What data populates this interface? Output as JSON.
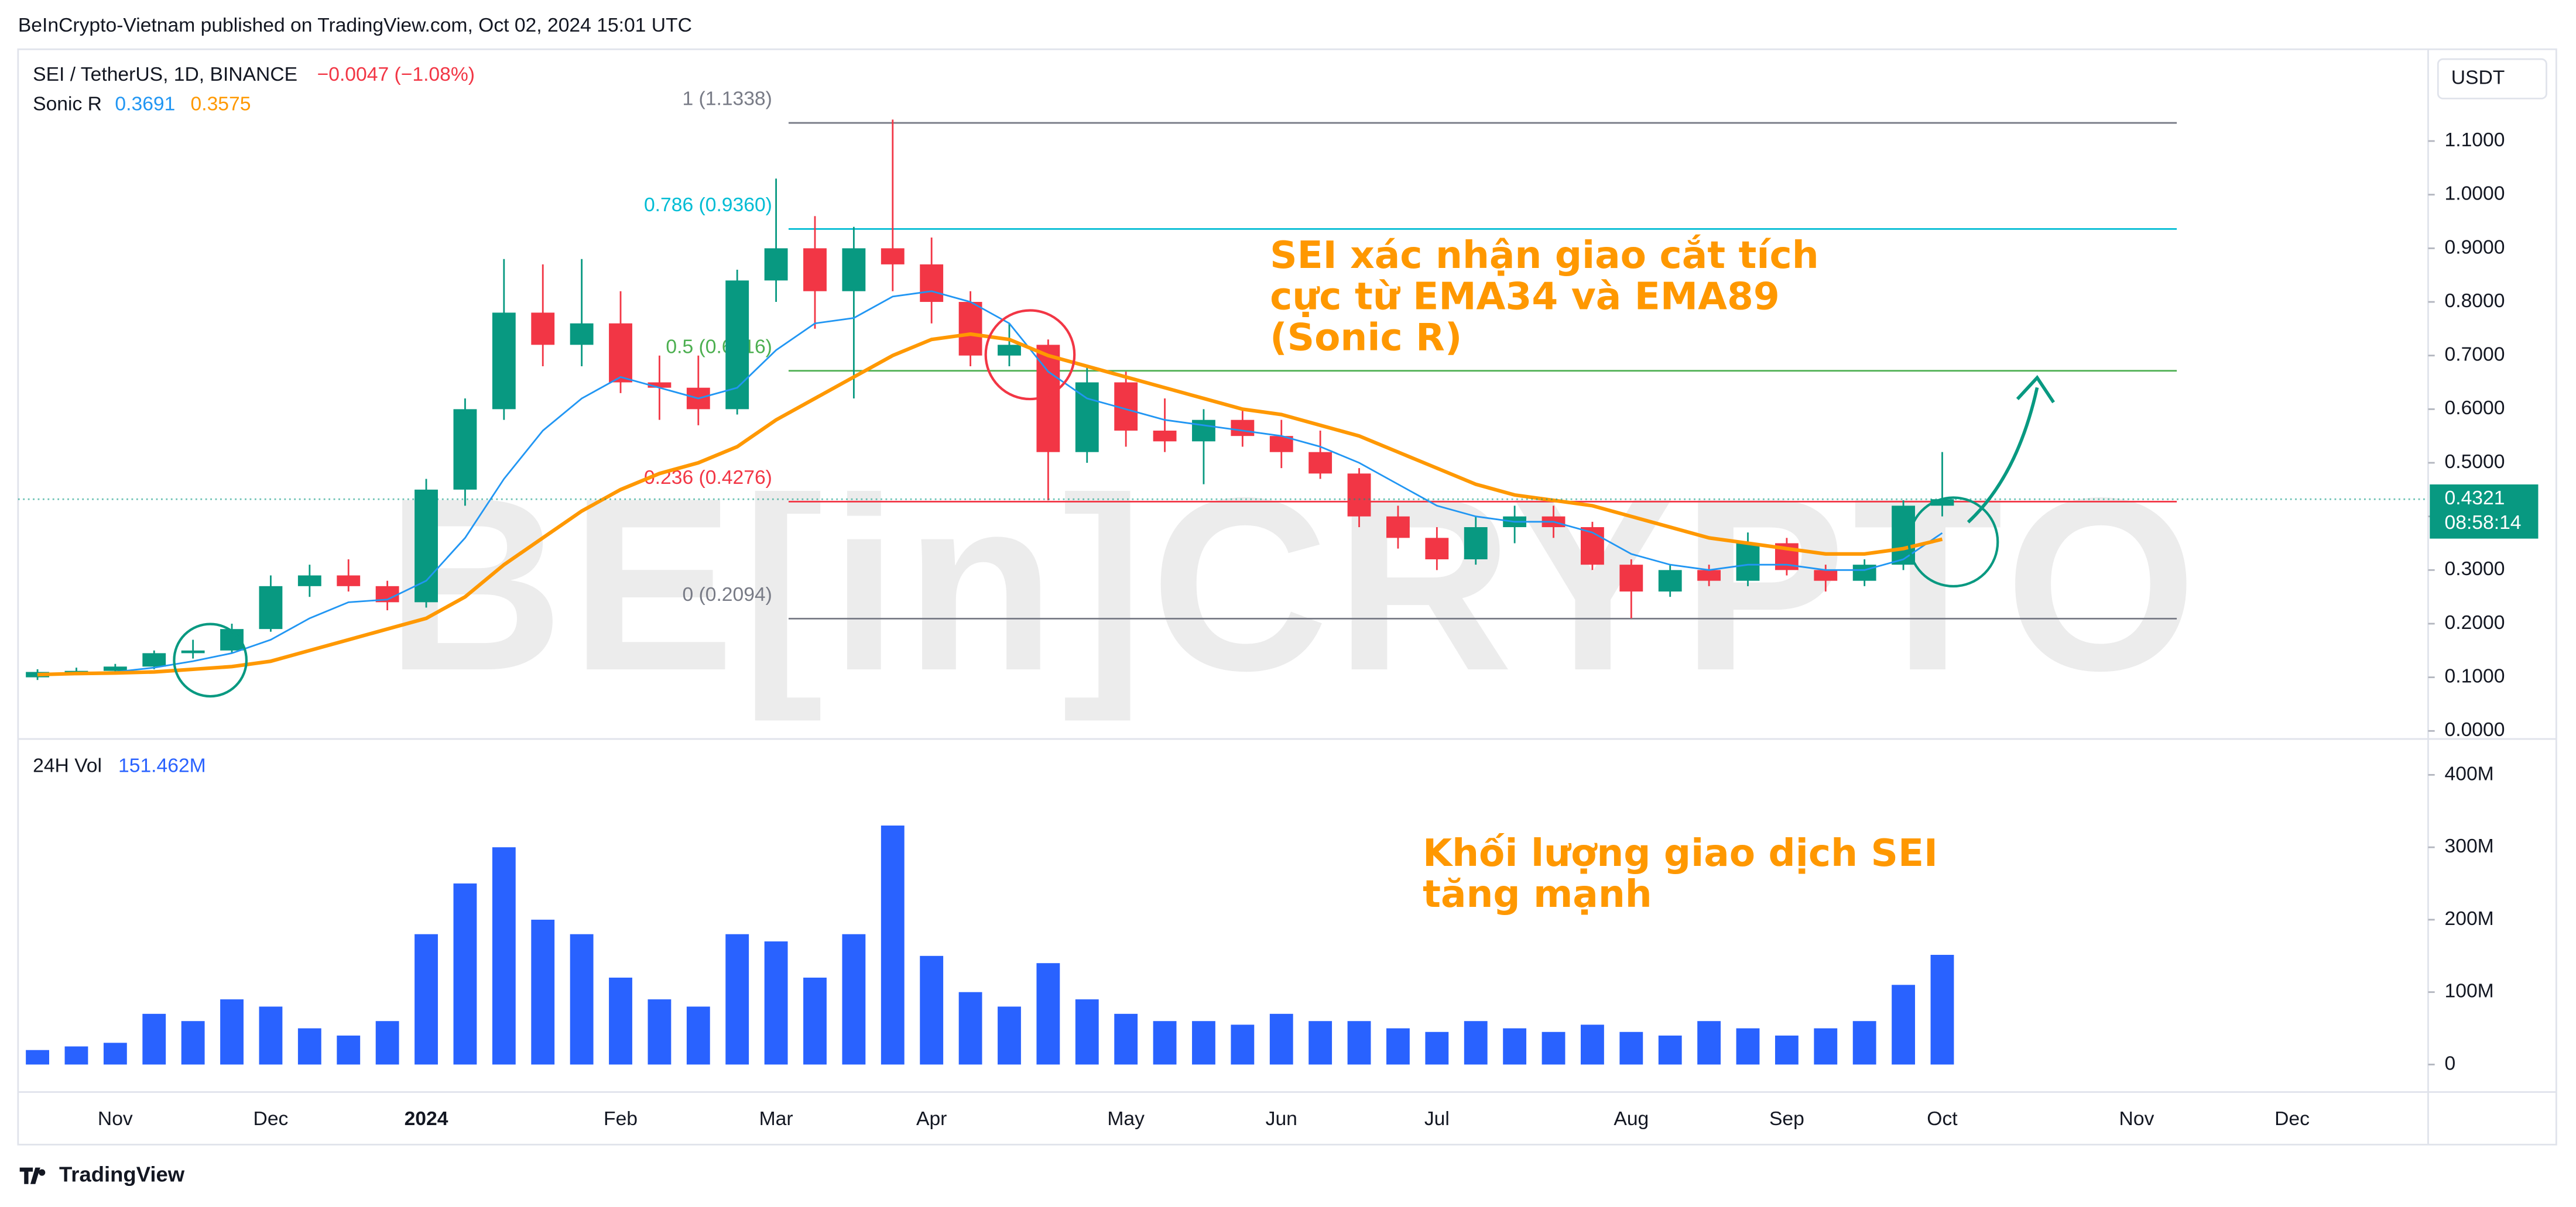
{
  "header": {
    "published": "BeInCrypto-Vietnam published on TradingView.com, Oct 02, 2024 15:01 UTC",
    "symbol": "SEI / TetherUS, 1D, BINANCE",
    "change": "−0.0047 (−1.08%)",
    "indicator": "Sonic R",
    "volume_title": "24H Vol",
    "currency": "USDT",
    "countdown": "08:58:14",
    "footer": "TradingView"
  },
  "watermark": "BE[in]CRYPTO",
  "annotations": [
    {
      "lines": [
        "SEI xác nhận giao cắt tích",
        "cực từ EMA34 và EMA89",
        "(Sonic R)"
      ],
      "color": "#ff9800"
    },
    {
      "lines": [
        "Khối lượng giao dịch SEI",
        "tăng mạnh"
      ],
      "color": "#ff9800"
    }
  ],
  "fib_levels": [
    {
      "label": "1 (1.1338)",
      "price": 1.1338,
      "color": "#787b86"
    },
    {
      "label": "0.786 (0.9360)",
      "price": 0.936,
      "color": "#00bcd4"
    },
    {
      "label": "0.5 (0.6716)",
      "price": 0.6716,
      "color": "#4caf50"
    },
    {
      "label": "0.236 (0.4276)",
      "price": 0.4276,
      "color": "#f23645"
    },
    {
      "label": "0 (0.2094)",
      "price": 0.2094,
      "color": "#787b86"
    }
  ],
  "chart_data": [
    {
      "type": "candlestick",
      "categories": [
        null,
        null,
        "Nov",
        null,
        null,
        null,
        "Dec",
        null,
        null,
        null,
        "2024",
        null,
        null,
        null,
        null,
        "Feb",
        null,
        null,
        null,
        "Mar",
        null,
        null,
        null,
        "Apr",
        null,
        null,
        null,
        null,
        "May",
        null,
        null,
        null,
        "Jun",
        null,
        null,
        null,
        "Jul",
        null,
        null,
        null,
        null,
        "Aug",
        null,
        null,
        null,
        "Sep",
        null,
        null,
        null,
        "Oct",
        null,
        null,
        null,
        null,
        "Nov",
        null,
        null,
        null,
        "Dec",
        null,
        null,
        null
      ],
      "open": [
        0.1,
        0.11,
        0.112,
        0.12,
        0.145,
        0.15,
        0.19,
        0.27,
        0.29,
        0.27,
        0.24,
        0.45,
        0.6,
        0.78,
        0.72,
        0.76,
        0.65,
        0.64,
        0.6,
        0.84,
        0.9,
        0.82,
        0.9,
        0.87,
        0.8,
        0.7,
        0.72,
        0.52,
        0.65,
        0.56,
        0.54,
        0.58,
        0.55,
        0.52,
        0.48,
        0.4,
        0.36,
        0.32,
        0.38,
        0.4,
        0.38,
        0.31,
        0.26,
        0.3,
        0.28,
        0.35,
        0.3,
        0.28,
        0.31,
        0.42,
        null,
        null,
        null,
        null,
        null,
        null,
        null,
        null,
        null,
        null,
        null,
        null
      ],
      "high": [
        0.115,
        0.118,
        0.125,
        0.15,
        0.17,
        0.2,
        0.29,
        0.31,
        0.32,
        0.28,
        0.47,
        0.62,
        0.88,
        0.87,
        0.88,
        0.82,
        0.7,
        0.7,
        0.86,
        1.03,
        0.96,
        0.94,
        1.14,
        0.92,
        0.82,
        0.76,
        0.73,
        0.68,
        0.67,
        0.62,
        0.6,
        0.6,
        0.58,
        0.56,
        0.49,
        0.42,
        0.38,
        0.4,
        0.42,
        0.42,
        0.39,
        0.32,
        0.31,
        0.31,
        0.37,
        0.36,
        0.31,
        0.32,
        0.43,
        0.52,
        null,
        null,
        null,
        null,
        null,
        null,
        null,
        null,
        null,
        null,
        null,
        null
      ],
      "low": [
        0.095,
        0.105,
        0.108,
        0.115,
        0.135,
        0.145,
        0.185,
        0.25,
        0.26,
        0.225,
        0.23,
        0.42,
        0.58,
        0.68,
        0.68,
        0.63,
        0.58,
        0.57,
        0.59,
        0.8,
        0.75,
        0.62,
        0.82,
        0.76,
        0.68,
        0.68,
        0.43,
        0.5,
        0.53,
        0.52,
        0.46,
        0.53,
        0.49,
        0.47,
        0.38,
        0.34,
        0.3,
        0.31,
        0.35,
        0.36,
        0.3,
        0.21,
        0.25,
        0.27,
        0.27,
        0.29,
        0.26,
        0.27,
        0.3,
        0.4,
        null,
        null,
        null,
        null,
        null,
        null,
        null,
        null,
        null,
        null,
        null,
        null
      ],
      "close": [
        0.11,
        0.112,
        0.12,
        0.145,
        0.15,
        0.19,
        0.27,
        0.29,
        0.27,
        0.24,
        0.45,
        0.6,
        0.78,
        0.72,
        0.76,
        0.65,
        0.64,
        0.6,
        0.84,
        0.9,
        0.82,
        0.9,
        0.87,
        0.8,
        0.7,
        0.72,
        0.52,
        0.65,
        0.56,
        0.54,
        0.58,
        0.55,
        0.52,
        0.48,
        0.4,
        0.36,
        0.32,
        0.38,
        0.4,
        0.38,
        0.31,
        0.26,
        0.3,
        0.28,
        0.35,
        0.3,
        0.28,
        0.31,
        0.42,
        0.4321,
        null,
        null,
        null,
        null,
        null,
        null,
        null,
        null,
        null,
        null,
        null,
        null
      ],
      "up_color": "#089981",
      "down_color": "#f23645",
      "lines": [
        {
          "color": "#2196f3",
          "values": [
            0.105,
            0.108,
            0.11,
            0.118,
            0.13,
            0.145,
            0.17,
            0.21,
            0.24,
            0.245,
            0.28,
            0.36,
            0.47,
            0.56,
            0.62,
            0.66,
            0.64,
            0.62,
            0.64,
            0.71,
            0.76,
            0.77,
            0.81,
            0.82,
            0.8,
            0.76,
            0.67,
            0.62,
            0.6,
            0.58,
            0.57,
            0.56,
            0.55,
            0.53,
            0.5,
            0.46,
            0.42,
            0.4,
            0.39,
            0.39,
            0.37,
            0.33,
            0.31,
            0.3,
            0.31,
            0.31,
            0.3,
            0.3,
            0.32,
            0.3691,
            null,
            null,
            null,
            null,
            null,
            null,
            null,
            null,
            null,
            null,
            null,
            null
          ]
        },
        {
          "color": "#ff9800",
          "values": [
            0.105,
            0.107,
            0.108,
            0.11,
            0.115,
            0.12,
            0.13,
            0.15,
            0.17,
            0.19,
            0.21,
            0.25,
            0.31,
            0.36,
            0.41,
            0.45,
            0.48,
            0.5,
            0.53,
            0.58,
            0.62,
            0.66,
            0.7,
            0.73,
            0.74,
            0.73,
            0.7,
            0.68,
            0.66,
            0.64,
            0.62,
            0.6,
            0.59,
            0.57,
            0.55,
            0.52,
            0.49,
            0.46,
            0.44,
            0.43,
            0.42,
            0.4,
            0.38,
            0.36,
            0.35,
            0.34,
            0.33,
            0.33,
            0.34,
            0.3575,
            null,
            null,
            null,
            null,
            null,
            null,
            null,
            null,
            null,
            null,
            null,
            null
          ]
        }
      ],
      "ylim": [
        -0.015,
        1.265
      ],
      "yticks": [
        {
          "value": 0,
          "label": "0.0000"
        },
        {
          "value": 0.1,
          "label": "0.1000"
        },
        {
          "value": 0.2,
          "label": "0.2000"
        },
        {
          "value": 0.3,
          "label": "0.3000"
        },
        {
          "value": 0.4,
          "label": "0.4000"
        },
        {
          "value": 0.5,
          "label": "0.5000"
        },
        {
          "value": 0.6,
          "label": "0.6000"
        },
        {
          "value": 0.7,
          "label": "0.7000"
        },
        {
          "value": 0.8,
          "label": "0.8000"
        },
        {
          "value": 0.9,
          "label": "0.9000"
        },
        {
          "value": 1,
          "label": "1.0000"
        },
        {
          "value": 1.1,
          "label": "1.1000"
        }
      ],
      "grid": false
    },
    {
      "type": "bar",
      "color": "#2962ff",
      "values": [
        20,
        25,
        30,
        70,
        60,
        90,
        80,
        50,
        40,
        60,
        180,
        250,
        300,
        200,
        180,
        120,
        90,
        80,
        180,
        170,
        120,
        180,
        330,
        150,
        100,
        80,
        140,
        90,
        70,
        60,
        60,
        55,
        70,
        60,
        60,
        50,
        45,
        60,
        50,
        45,
        55,
        45,
        40,
        60,
        50,
        40,
        50,
        60,
        110,
        151.462,
        null,
        null,
        null,
        null,
        null,
        null,
        null,
        null,
        null,
        null,
        null,
        null
      ],
      "value_labels": [
        null,
        null,
        null,
        null,
        null,
        null,
        null,
        null,
        null,
        null,
        null,
        null,
        null,
        null,
        null,
        null,
        null,
        null,
        null,
        null,
        null,
        null,
        null,
        null,
        null,
        null,
        null,
        null,
        null,
        null,
        null,
        null,
        null,
        null,
        null,
        null,
        null,
        null,
        null,
        null,
        null,
        null,
        null,
        null,
        null,
        null,
        null,
        null,
        null,
        "151.462M",
        null,
        null,
        null,
        null,
        null,
        null,
        null,
        null,
        null,
        null,
        null,
        null
      ],
      "ylim": [
        -38,
        445
      ],
      "yticks": [
        0,
        {
          "value": 100,
          "label": "100M"
        },
        {
          "value": 200,
          "label": "200M"
        },
        {
          "value": 300,
          "label": "300M"
        },
        {
          "value": 400,
          "label": "400M"
        }
      ],
      "grid": false
    }
  ]
}
